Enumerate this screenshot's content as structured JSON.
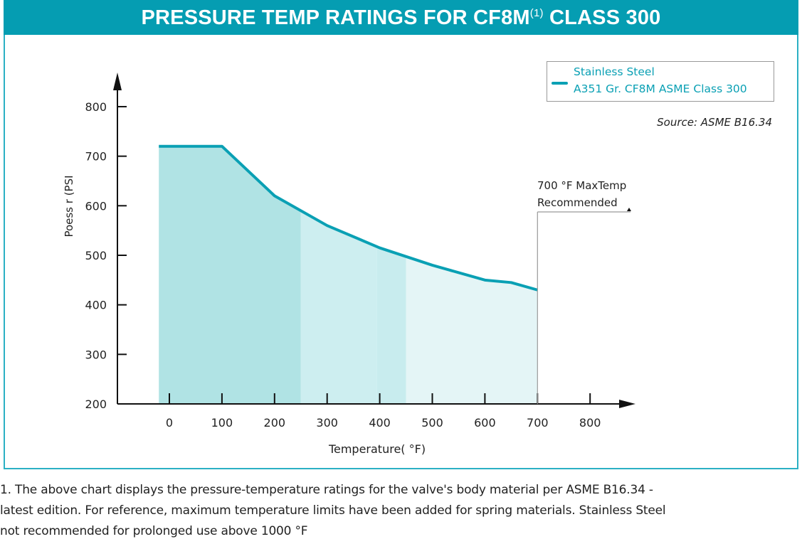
{
  "header": {
    "title_main": "PRESSURE TEMP RATINGS FOR CF8M",
    "title_sup": "(1)",
    "title_tail": " CLASS 300"
  },
  "colors": {
    "brand": "#059db2",
    "line": "#0aa0b4",
    "band_dark": "#b0e3e4",
    "band_mid": "#cdeef0",
    "band_mid2": "#c8ecee",
    "band_light": "#e4f5f6"
  },
  "legend": {
    "line1": "Stainless Steel",
    "line2": "A351 Gr. CF8M ASME Class 300"
  },
  "source": "Source: ASME  B16.34",
  "annotation": {
    "line1": "700 °F MaxTemp",
    "line2": "Recommended",
    "temp_limit": 700
  },
  "footnote": {
    "line1": "1.   The above chart displays the pressure-temperature ratings for the valve's body material per ASME B16.34 -",
    "line2": "latest edition.  For reference, maximum temperature limits have been added for spring materials. Stainless Steel",
    "line3": "not recommended for prolonged use above 1000 °F"
  },
  "chart_data": {
    "type": "area",
    "title": "PRESSURE TEMP RATINGS FOR CF8M(1) CLASS 300",
    "xlabel": "Temperature( °F)",
    "ylabel": "Poess r (PSI",
    "xlim": [
      -100,
      850
    ],
    "ylim": [
      200,
      840
    ],
    "x_ticks": [
      0,
      100,
      200,
      300,
      400,
      500,
      600,
      700,
      800
    ],
    "x_tick_labels": [
      "0",
      "100",
      "200",
      "300",
      "400",
      "500",
      "600",
      "700",
      "800"
    ],
    "y_ticks": [
      200,
      300,
      400,
      500,
      600,
      700,
      800
    ],
    "y_tick_labels": [
      "200",
      "300",
      "400",
      "500",
      "600",
      "700",
      "800"
    ],
    "grid": false,
    "legend_position": "top-right",
    "series": [
      {
        "name": "Stainless Steel A351 Gr. CF8M ASME Class 300",
        "x": [
          -20,
          100,
          200,
          300,
          400,
          500,
          600,
          650,
          700
        ],
        "y": [
          720,
          720,
          620,
          560,
          515,
          480,
          450,
          445,
          430
        ]
      }
    ],
    "bands": [
      {
        "from": -20,
        "to": 250,
        "shade": "band_dark"
      },
      {
        "from": 250,
        "to": 395,
        "shade": "band_mid"
      },
      {
        "from": 395,
        "to": 450,
        "shade": "band_mid2"
      },
      {
        "from": 450,
        "to": 700,
        "shade": "band_light"
      }
    ]
  }
}
